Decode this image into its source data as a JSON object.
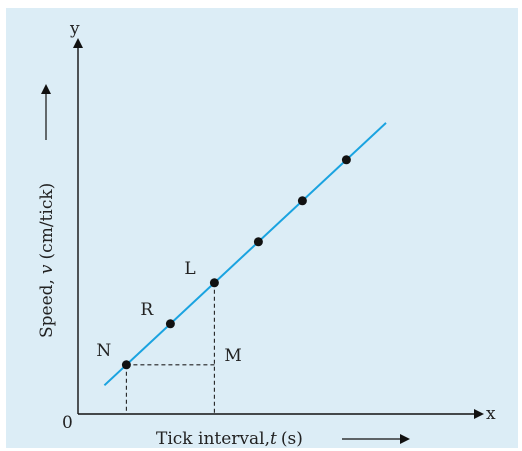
{
  "chart_data": {
    "type": "line",
    "title": "",
    "xlabel_prefix": "Tick interval,",
    "xlabel_var": "t",
    "xlabel_unit": "(s)",
    "ylabel_prefix": "Speed,",
    "ylabel_var": "v",
    "ylabel_unit": "(cm/tick)",
    "x_axis_letter": "x",
    "y_axis_letter": "y",
    "origin_label": "0",
    "xlim": [
      0,
      10
    ],
    "ylim": [
      0,
      8
    ],
    "grid": false,
    "line": {
      "x": [
        0.6,
        7.0
      ],
      "y": [
        0.7,
        7.1
      ],
      "color": "#1aa3e0"
    },
    "points": [
      {
        "x": 1.1,
        "y": 1.2,
        "label": "N"
      },
      {
        "x": 2.1,
        "y": 2.2,
        "label": "R"
      },
      {
        "x": 3.1,
        "y": 3.2,
        "label": "L"
      },
      {
        "x": 4.1,
        "y": 4.2,
        "label": ""
      },
      {
        "x": 5.1,
        "y": 5.2,
        "label": ""
      },
      {
        "x": 6.1,
        "y": 6.2,
        "label": ""
      }
    ],
    "construction": {
      "corner_label": "M",
      "from": "N",
      "to": "L"
    }
  }
}
